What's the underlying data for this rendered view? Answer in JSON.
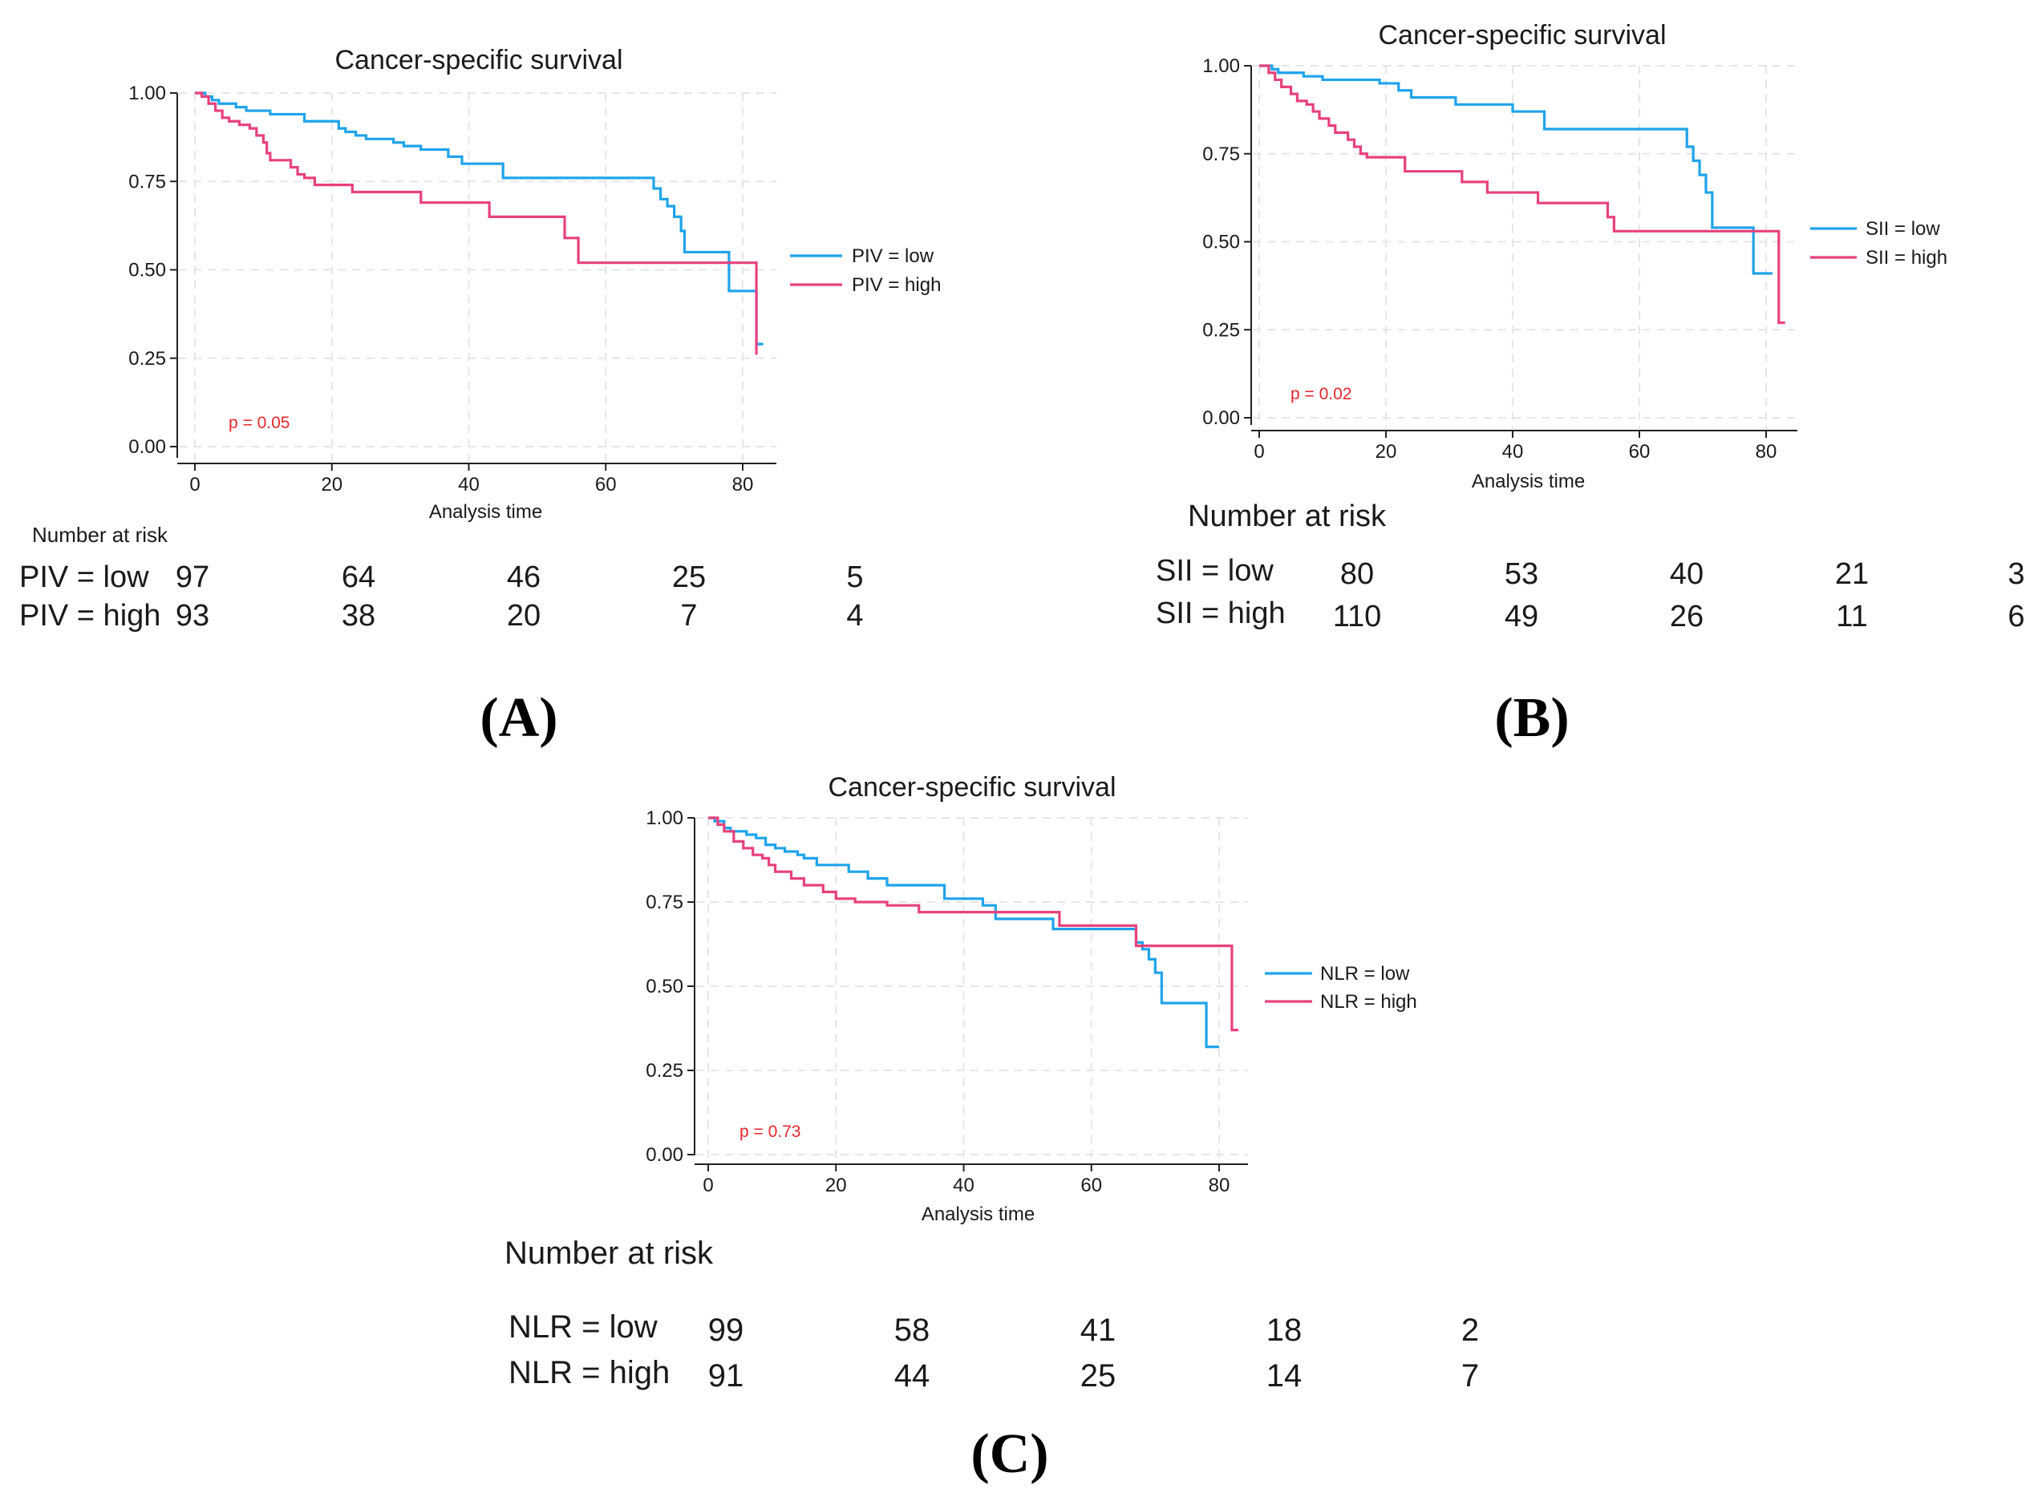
{
  "colors": {
    "low": "#1fa3ec",
    "high": "#e8417c",
    "pvalue": "#e8262b",
    "axis": "#222222",
    "text": "#1a1a1a"
  },
  "chart_data": [
    {
      "id": "A",
      "type": "line",
      "title": "Cancer-specific survival",
      "xlabel": "Analysis time",
      "ylabel": "",
      "xlim": [
        0,
        84
      ],
      "ylim": [
        0,
        1
      ],
      "xticks": [
        "0",
        "20",
        "40",
        "60",
        "80"
      ],
      "yticks": [
        "0.00",
        "0.25",
        "0.50",
        "0.75",
        "1.00"
      ],
      "grid": true,
      "legend_position": "right",
      "p_value_label": "p = 0.05",
      "panel_label": "(A)",
      "series": [
        {
          "name": "PIV = low",
          "group": "low",
          "steps": [
            [
              0,
              1.0
            ],
            [
              1.5,
              0.99
            ],
            [
              2.5,
              0.98
            ],
            [
              3.5,
              0.97
            ],
            [
              6,
              0.96
            ],
            [
              7.5,
              0.95
            ],
            [
              11,
              0.94
            ],
            [
              16,
              0.92
            ],
            [
              21,
              0.9
            ],
            [
              22,
              0.89
            ],
            [
              23.5,
              0.88
            ],
            [
              25,
              0.87
            ],
            [
              29,
              0.86
            ],
            [
              30.5,
              0.85
            ],
            [
              33,
              0.84
            ],
            [
              37,
              0.82
            ],
            [
              39,
              0.8
            ],
            [
              45,
              0.76
            ],
            [
              67,
              0.73
            ],
            [
              68,
              0.7
            ],
            [
              69,
              0.68
            ],
            [
              70,
              0.65
            ],
            [
              71,
              0.61
            ],
            [
              71.5,
              0.55
            ],
            [
              78,
              0.44
            ],
            [
              82,
              0.29
            ],
            [
              83,
              0.29
            ]
          ]
        },
        {
          "name": "PIV = high",
          "group": "high",
          "steps": [
            [
              0,
              1.0
            ],
            [
              1,
              0.99
            ],
            [
              2,
              0.97
            ],
            [
              3,
              0.95
            ],
            [
              4,
              0.93
            ],
            [
              5,
              0.92
            ],
            [
              6.5,
              0.91
            ],
            [
              8,
              0.9
            ],
            [
              9,
              0.88
            ],
            [
              10,
              0.86
            ],
            [
              10.5,
              0.83
            ],
            [
              11,
              0.81
            ],
            [
              14,
              0.79
            ],
            [
              15,
              0.77
            ],
            [
              16,
              0.76
            ],
            [
              17.5,
              0.74
            ],
            [
              23,
              0.72
            ],
            [
              33,
              0.69
            ],
            [
              43,
              0.65
            ],
            [
              54,
              0.59
            ],
            [
              56,
              0.52
            ],
            [
              82,
              0.26
            ]
          ]
        }
      ],
      "risk_table": {
        "heading": "Number at risk",
        "rows": [
          {
            "label": "PIV = low",
            "values": [
              "97",
              "64",
              "46",
              "25",
              "5"
            ]
          },
          {
            "label": "PIV = high",
            "values": [
              "93",
              "38",
              "20",
              "7",
              "4"
            ]
          }
        ]
      }
    },
    {
      "id": "B",
      "type": "line",
      "title": "Cancer-specific survival",
      "xlabel": "Analysis time",
      "ylabel": "",
      "xlim": [
        0,
        84
      ],
      "ylim": [
        0,
        1
      ],
      "xticks": [
        "0",
        "20",
        "40",
        "60",
        "80"
      ],
      "yticks": [
        "0.00",
        "0.25",
        "0.50",
        "0.75",
        "1.00"
      ],
      "grid": true,
      "legend_position": "right",
      "p_value_label": "p = 0.02",
      "panel_label": "(B)",
      "series": [
        {
          "name": "SII = low",
          "group": "low",
          "steps": [
            [
              0,
              1.0
            ],
            [
              2,
              0.99
            ],
            [
              3,
              0.98
            ],
            [
              7,
              0.97
            ],
            [
              10,
              0.96
            ],
            [
              19,
              0.95
            ],
            [
              22,
              0.93
            ],
            [
              24,
              0.91
            ],
            [
              31,
              0.89
            ],
            [
              40,
              0.87
            ],
            [
              45,
              0.82
            ],
            [
              67.5,
              0.77
            ],
            [
              68.5,
              0.73
            ],
            [
              69.5,
              0.69
            ],
            [
              70.5,
              0.64
            ],
            [
              71.5,
              0.54
            ],
            [
              78,
              0.41
            ],
            [
              81,
              0.41
            ]
          ]
        },
        {
          "name": "SII = high",
          "group": "high",
          "steps": [
            [
              0,
              1.0
            ],
            [
              1.5,
              0.98
            ],
            [
              2.5,
              0.96
            ],
            [
              3.5,
              0.94
            ],
            [
              5,
              0.92
            ],
            [
              6,
              0.9
            ],
            [
              7.5,
              0.89
            ],
            [
              8.5,
              0.87
            ],
            [
              9.5,
              0.85
            ],
            [
              11,
              0.83
            ],
            [
              12,
              0.81
            ],
            [
              14,
              0.79
            ],
            [
              15,
              0.77
            ],
            [
              16,
              0.75
            ],
            [
              17,
              0.74
            ],
            [
              23,
              0.7
            ],
            [
              32,
              0.67
            ],
            [
              36,
              0.64
            ],
            [
              44,
              0.61
            ],
            [
              55,
              0.57
            ],
            [
              56,
              0.53
            ],
            [
              82,
              0.27
            ],
            [
              83,
              0.27
            ]
          ]
        }
      ],
      "risk_table": {
        "heading": "Number at risk",
        "rows": [
          {
            "label": "SII = low",
            "values": [
              "80",
              "53",
              "40",
              "21",
              "3"
            ]
          },
          {
            "label": "SII = high",
            "values": [
              "110",
              "49",
              "26",
              "11",
              "6"
            ]
          }
        ]
      }
    },
    {
      "id": "C",
      "type": "line",
      "title": "Cancer-specific survival",
      "xlabel": "Analysis time",
      "ylabel": "",
      "xlim": [
        0,
        84
      ],
      "ylim": [
        0,
        1
      ],
      "xticks": [
        "0",
        "20",
        "40",
        "60",
        "80"
      ],
      "yticks": [
        "0.00",
        "0.25",
        "0.50",
        "0.75",
        "1.00"
      ],
      "grid": true,
      "legend_position": "right",
      "p_value_label": "p = 0.73",
      "panel_label": "(C)",
      "series": [
        {
          "name": "NLR = low",
          "group": "low",
          "steps": [
            [
              0,
              1.0
            ],
            [
              1,
              0.99
            ],
            [
              2.5,
              0.97
            ],
            [
              3.5,
              0.96
            ],
            [
              6,
              0.95
            ],
            [
              7.5,
              0.94
            ],
            [
              9,
              0.92
            ],
            [
              10.5,
              0.91
            ],
            [
              12,
              0.9
            ],
            [
              14,
              0.89
            ],
            [
              15,
              0.88
            ],
            [
              17,
              0.86
            ],
            [
              22,
              0.84
            ],
            [
              25,
              0.82
            ],
            [
              28,
              0.8
            ],
            [
              37,
              0.76
            ],
            [
              43,
              0.74
            ],
            [
              45,
              0.7
            ],
            [
              54,
              0.67
            ],
            [
              67,
              0.63
            ],
            [
              68,
              0.61
            ],
            [
              69,
              0.58
            ],
            [
              70,
              0.54
            ],
            [
              71,
              0.45
            ],
            [
              78,
              0.32
            ],
            [
              80,
              0.32
            ]
          ]
        },
        {
          "name": "NLR = high",
          "group": "high",
          "steps": [
            [
              0,
              1.0
            ],
            [
              1.5,
              0.98
            ],
            [
              2.5,
              0.96
            ],
            [
              4,
              0.93
            ],
            [
              5.5,
              0.91
            ],
            [
              7,
              0.89
            ],
            [
              8.5,
              0.88
            ],
            [
              9.5,
              0.86
            ],
            [
              10.5,
              0.84
            ],
            [
              13,
              0.82
            ],
            [
              15,
              0.8
            ],
            [
              18,
              0.78
            ],
            [
              20,
              0.76
            ],
            [
              23,
              0.75
            ],
            [
              28,
              0.74
            ],
            [
              33,
              0.72
            ],
            [
              55,
              0.68
            ],
            [
              67,
              0.62
            ],
            [
              82,
              0.37
            ],
            [
              83,
              0.37
            ]
          ]
        }
      ],
      "risk_table": {
        "heading": "Number at risk",
        "rows": [
          {
            "label": "NLR = low",
            "values": [
              "99",
              "58",
              "41",
              "18",
              "2"
            ]
          },
          {
            "label": "NLR = high",
            "values": [
              "91",
              "44",
              "25",
              "14",
              "7"
            ]
          }
        ]
      }
    }
  ]
}
